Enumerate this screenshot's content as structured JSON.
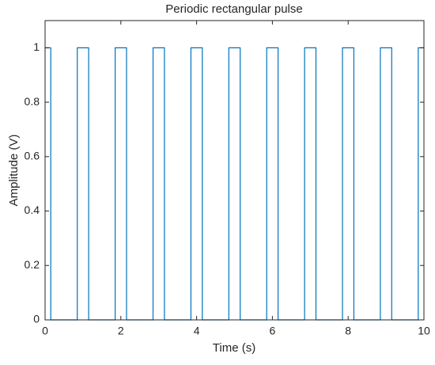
{
  "chart_data": {
    "type": "line",
    "title": "Periodic rectangular pulse",
    "x_label": "Time (s)",
    "y_label": "Amplitude (V)",
    "x": [
      0,
      0.15,
      0.15,
      0.85,
      0.85,
      1.15,
      1.15,
      1.85,
      1.85,
      2.15,
      2.15,
      2.85,
      2.85,
      3.15,
      3.15,
      3.85,
      3.85,
      4.15,
      4.15,
      4.85,
      4.85,
      5.15,
      5.15,
      5.85,
      5.85,
      6.15,
      6.15,
      6.85,
      6.85,
      7.15,
      7.15,
      7.85,
      7.85,
      8.15,
      8.15,
      8.85,
      8.85,
      9.15,
      9.15,
      9.85,
      9.85,
      10
    ],
    "series": [
      {
        "color": "#0072bd",
        "values": [
          1,
          1,
          0,
          0,
          1,
          1,
          0,
          0,
          1,
          1,
          0,
          0,
          1,
          1,
          0,
          0,
          1,
          1,
          0,
          0,
          1,
          1,
          0,
          0,
          1,
          1,
          0,
          0,
          1,
          1,
          0,
          0,
          1,
          1,
          0,
          0,
          1,
          1,
          0,
          0,
          1,
          1
        ]
      }
    ],
    "xlim": [
      0,
      10
    ],
    "xticks": [
      0,
      2,
      4,
      6,
      8,
      10
    ],
    "ylim": [
      0,
      1.1
    ],
    "yticks": [
      0,
      0.2,
      0.4,
      0.6,
      0.8,
      1
    ],
    "grid": false
  }
}
